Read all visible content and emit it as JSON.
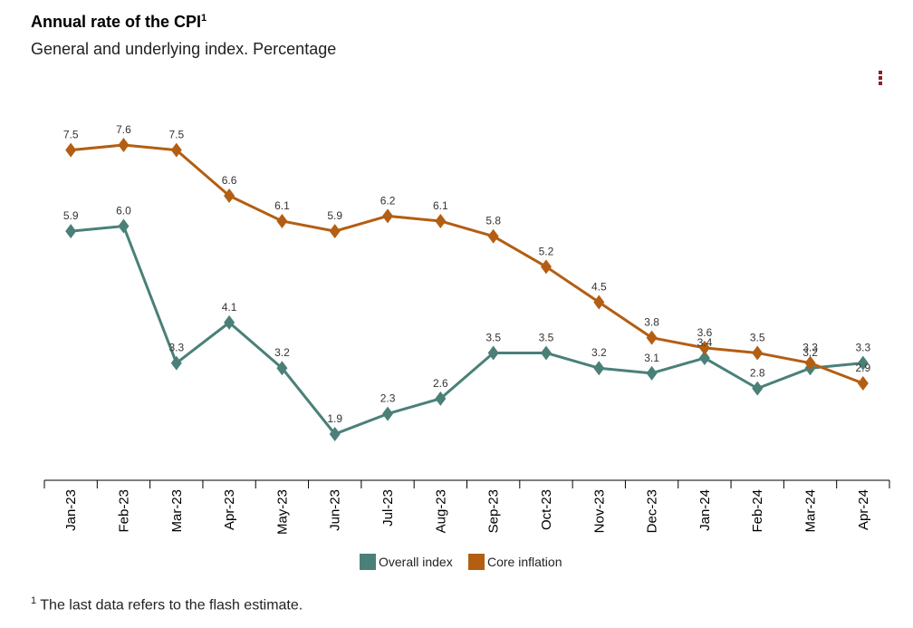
{
  "header": {
    "title": "Annual rate of the CPI",
    "title_sup": "1",
    "subtitle": "General and underlying index. Percentage"
  },
  "menu": {
    "icon": "kebab-menu-icon"
  },
  "footnote": {
    "sup": "1",
    "text": " The last data refers to the flash estimate."
  },
  "colors": {
    "overall": "#4a8078",
    "core": "#b35e12",
    "axis": "#000000"
  },
  "chart_data": {
    "type": "line",
    "title": "Annual rate of the CPI",
    "subtitle": "General and underlying index. Percentage",
    "xlabel": "",
    "ylabel": "",
    "ylim": [
      0,
      9
    ],
    "grid": false,
    "legend_position": "bottom-center",
    "categories": [
      "Jan-23",
      "Feb-23",
      "Mar-23",
      "Apr-23",
      "May-23",
      "Jun-23",
      "Jul-23",
      "Aug-23",
      "Sep-23",
      "Oct-23",
      "Nov-23",
      "Dec-23",
      "Jan-24",
      "Feb-24",
      "Mar-24",
      "Apr-24"
    ],
    "series": [
      {
        "name": "Overall index",
        "values": [
          5.9,
          6.0,
          3.3,
          4.1,
          3.2,
          1.9,
          2.3,
          2.6,
          3.5,
          3.5,
          3.2,
          3.1,
          3.4,
          2.8,
          3.2,
          3.3
        ]
      },
      {
        "name": "Core inflation",
        "values": [
          7.5,
          7.6,
          7.5,
          6.6,
          6.1,
          5.9,
          6.2,
          6.1,
          5.8,
          5.2,
          4.5,
          3.8,
          3.6,
          3.5,
          3.3,
          2.9
        ]
      }
    ],
    "data_labels": [
      [
        "5.9",
        "6.0",
        "3.3",
        "4.1",
        "3.2",
        "1.9",
        "2.3",
        "2.6",
        "3.5",
        "3.5",
        "3.2",
        "3.1",
        "3.4",
        "2.8",
        "3.2",
        "3.3"
      ],
      [
        "7.5",
        "7.6",
        "7.5",
        "6.6",
        "6.1",
        "5.9",
        "6.2",
        "6.1",
        "5.8",
        "5.2",
        "4.5",
        "3.8",
        "3.6",
        "3.5",
        "3.3",
        "2.9"
      ]
    ]
  }
}
